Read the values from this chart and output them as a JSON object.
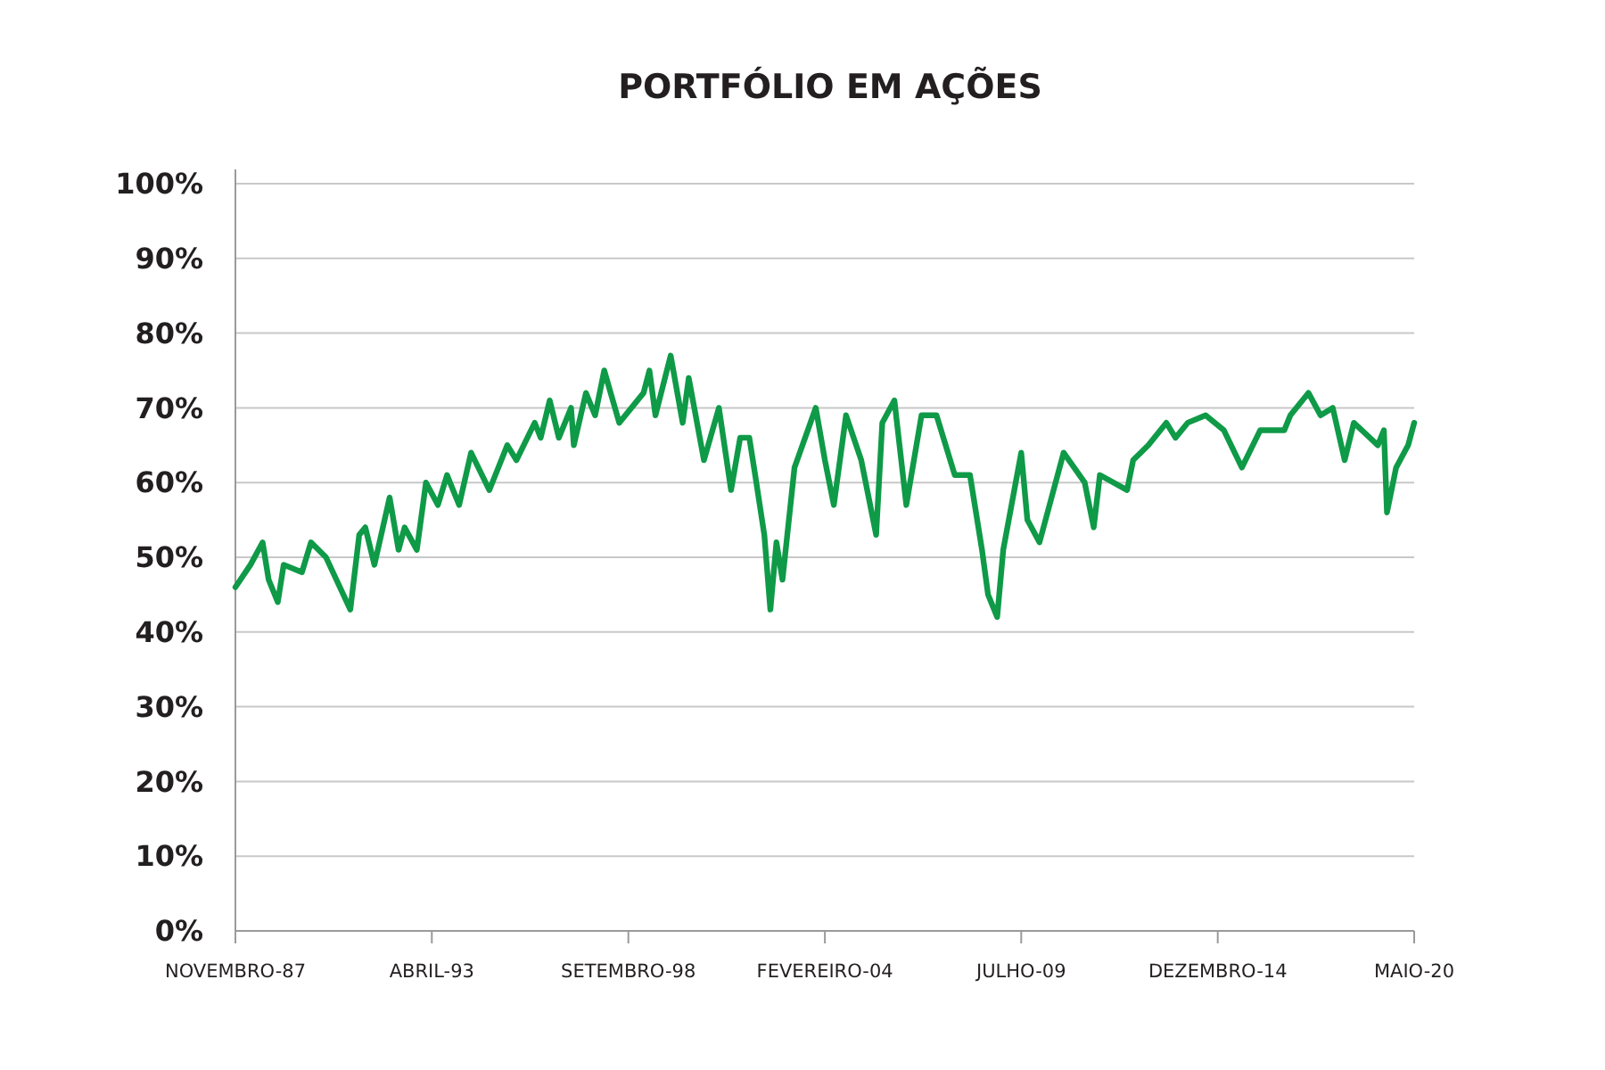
{
  "chart_data": {
    "type": "line",
    "title": "PORTFÓLIO EM AÇÕES",
    "x": [
      "1987-11",
      "1988-04",
      "1988-08",
      "1988-10",
      "1989-01",
      "1989-03",
      "1989-09",
      "1989-12",
      "1990-05",
      "1991-01",
      "1991-04",
      "1991-06",
      "1991-09",
      "1992-02",
      "1992-05",
      "1992-07",
      "1992-11",
      "1993-02",
      "1993-06",
      "1993-09",
      "1994-01",
      "1994-05",
      "1994-11",
      "1995-05",
      "1995-08",
      "1996-02",
      "1996-04",
      "1996-07",
      "1996-10",
      "1997-02",
      "1997-03",
      "1997-07",
      "1997-10",
      "1998-01",
      "1998-06",
      "1999-02",
      "1999-04",
      "1999-06",
      "1999-11",
      "2000-03",
      "2000-05",
      "2000-10",
      "2001-03",
      "2001-07",
      "2001-10",
      "2002-01",
      "2002-03",
      "2002-06",
      "2002-08",
      "2002-10",
      "2002-12",
      "2003-04",
      "2003-11",
      "2004-02",
      "2004-05",
      "2004-09",
      "2005-02",
      "2005-07",
      "2005-09",
      "2006-01",
      "2006-05",
      "2006-10",
      "2007-03",
      "2007-09",
      "2008-02",
      "2008-06",
      "2008-08",
      "2008-11",
      "2009-01",
      "2009-07",
      "2009-09",
      "2010-01",
      "2010-09",
      "2011-04",
      "2011-07",
      "2011-09",
      "2012-06",
      "2012-08",
      "2013-01",
      "2013-07",
      "2013-10",
      "2014-02",
      "2014-08",
      "2015-02",
      "2015-08",
      "2016-02",
      "2016-10",
      "2016-12",
      "2017-06",
      "2017-10",
      "2018-02",
      "2018-06",
      "2018-09",
      "2019-05",
      "2019-07",
      "2019-08",
      "2019-11",
      "2020-03",
      "2020-05"
    ],
    "series": [
      {
        "color": "#0f9a48",
        "values": [
          46,
          49,
          52,
          47,
          44,
          49,
          48,
          52,
          50,
          43,
          53,
          54,
          49,
          58,
          51,
          54,
          51,
          60,
          57,
          61,
          57,
          64,
          59,
          65,
          63,
          68,
          66,
          71,
          66,
          70,
          65,
          72,
          69,
          75,
          68,
          72,
          75,
          69,
          77,
          68,
          74,
          63,
          70,
          59,
          66,
          66,
          61,
          53,
          43,
          52,
          47,
          62,
          70,
          63,
          57,
          69,
          63,
          53,
          68,
          71,
          57,
          69,
          69,
          61,
          61,
          51,
          45,
          42,
          51,
          64,
          55,
          52,
          64,
          60,
          54,
          61,
          59,
          63,
          65,
          68,
          66,
          68,
          69,
          67,
          62,
          67,
          67,
          69,
          72,
          69,
          70,
          63,
          68,
          65,
          67,
          56,
          62,
          65,
          68
        ]
      }
    ],
    "xlim": [
      "1987-11",
      "2020-05"
    ],
    "xticks": [
      {
        "value": "1987-11",
        "label": "NOVEMBRO-87"
      },
      {
        "value": "1993-04",
        "label": "ABRIL-93"
      },
      {
        "value": "1998-09",
        "label": "SETEMBRO-98"
      },
      {
        "value": "2004-02",
        "label": "FEVEREIRO-04"
      },
      {
        "value": "2009-07",
        "label": "JULHO-09"
      },
      {
        "value": "2014-12",
        "label": "DEZEMBRO-14"
      },
      {
        "value": "2020-05",
        "label": "MAIO-20"
      }
    ],
    "ylim": [
      0,
      100
    ],
    "yticks": [
      {
        "value": 0,
        "label": "0%"
      },
      {
        "value": 10,
        "label": "10%"
      },
      {
        "value": 20,
        "label": "20%"
      },
      {
        "value": 30,
        "label": "30%"
      },
      {
        "value": 40,
        "label": "40%"
      },
      {
        "value": 50,
        "label": "50%"
      },
      {
        "value": 60,
        "label": "60%"
      },
      {
        "value": 70,
        "label": "70%"
      },
      {
        "value": 80,
        "label": "80%"
      },
      {
        "value": 90,
        "label": "90%"
      },
      {
        "value": 100,
        "label": "100%"
      }
    ],
    "grid": "y",
    "marker": "none",
    "line_style": "solid"
  }
}
